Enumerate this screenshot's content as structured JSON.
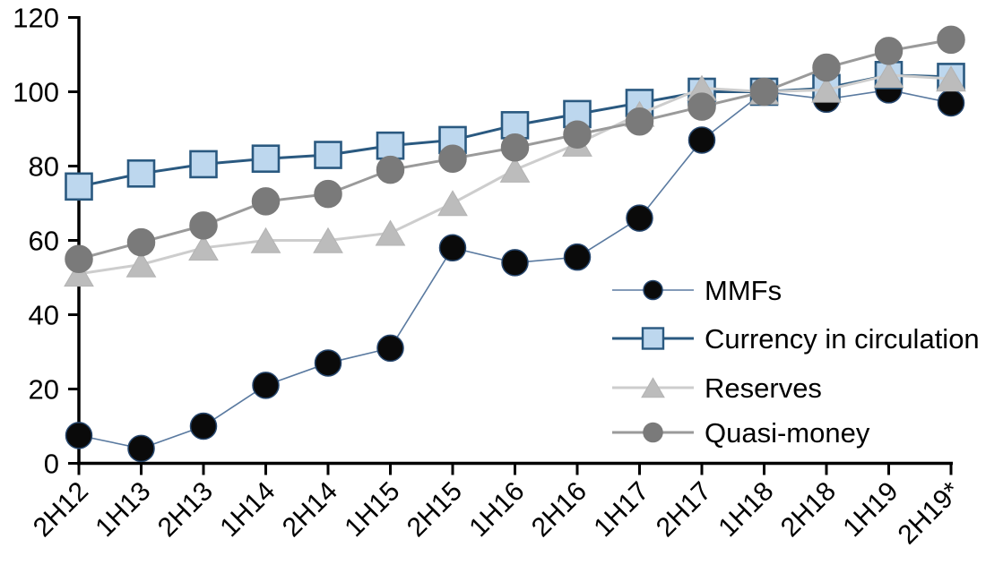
{
  "chart_data": {
    "type": "line",
    "title": "",
    "xlabel": "",
    "ylabel": "",
    "grid": false,
    "background": "#ffffff",
    "axis_color": "#000000",
    "ylim": [
      0,
      120
    ],
    "ytick_step": 20,
    "ytick_labels": [
      "0",
      "20",
      "40",
      "60",
      "80",
      "100",
      "120"
    ],
    "categories": [
      "2H12",
      "1H13",
      "2H13",
      "1H14",
      "2H14",
      "1H15",
      "2H15",
      "1H16",
      "2H16",
      "1H17",
      "2H17",
      "1H18",
      "2H18",
      "1H19",
      "2H19*"
    ],
    "legend_position": "inside-right",
    "series": [
      {
        "name": "MMFs",
        "marker": "circle",
        "marker_size": 29,
        "line_width": 1.6,
        "colors": {
          "marker_fill": "#0a0a0a",
          "marker_stroke": "#26466d",
          "line": "#5a7aa0"
        },
        "values": [
          7.5,
          4,
          10,
          21,
          27,
          31,
          58,
          54,
          55.5,
          66,
          87,
          100,
          98,
          100.5,
          97
        ]
      },
      {
        "name": "Currency in circulation",
        "marker": "square",
        "marker_size": 29,
        "line_width": 3,
        "colors": {
          "marker_fill": "#bdd7ee",
          "marker_stroke": "#2a5980",
          "line": "#2a5980"
        },
        "values": [
          74.5,
          78,
          80.5,
          82,
          83,
          85.5,
          87,
          91,
          94,
          97,
          100,
          100,
          101,
          104.5,
          104
        ]
      },
      {
        "name": "Reserves",
        "marker": "triangle",
        "marker_size": 32,
        "line_width": 3,
        "colors": {
          "marker_fill": "#bcbcbc",
          "marker_stroke": "#b3b3b3",
          "line": "#cdcdcd"
        },
        "values": [
          51,
          53.5,
          58,
          60,
          60,
          62,
          70,
          79,
          86,
          94,
          101,
          100,
          100.5,
          104.5,
          103.5
        ]
      },
      {
        "name": "Quasi-money",
        "marker": "circle",
        "marker_size": 30,
        "line_width": 3,
        "colors": {
          "marker_fill": "#7a7a7a",
          "marker_stroke": "#7a7a7a",
          "line": "#9a9a9a"
        },
        "values": [
          55,
          59.5,
          64,
          70.5,
          72.5,
          79,
          82,
          85,
          88.5,
          92,
          96,
          100,
          106.5,
          111,
          114
        ]
      }
    ]
  }
}
